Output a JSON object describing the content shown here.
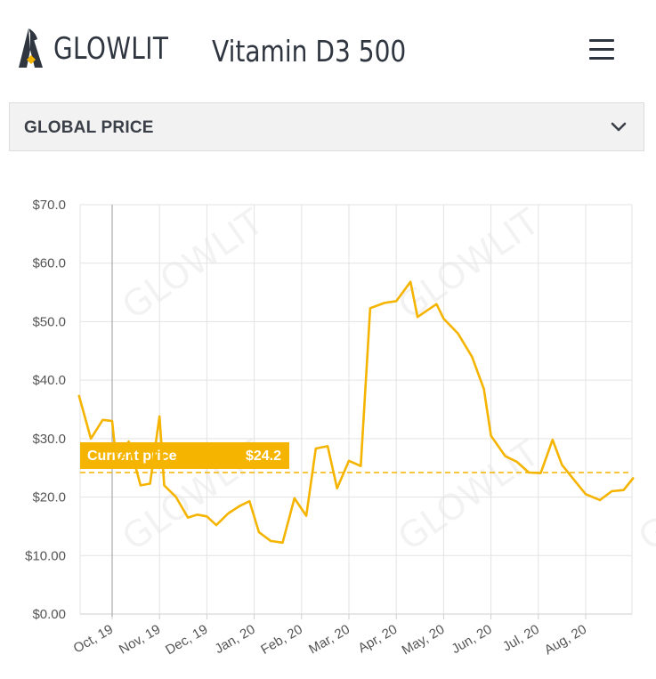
{
  "header": {
    "brand": "GLOWLIT",
    "product_title": "Vitamin D3 500",
    "menu_icon": "hamburger-menu-icon"
  },
  "section": {
    "title": "GLOBAL PRICE",
    "toggle_icon": "chevron-down-icon"
  },
  "watermark_text": "GLOWLIT",
  "colors": {
    "line": "#f5b400",
    "label_bg": "#f5b400",
    "text_dark": "#2f3640",
    "grid": "#e3e3e3"
  },
  "chart_data": {
    "type": "line",
    "xlabel": "",
    "ylabel": "",
    "ylim": [
      0,
      70
    ],
    "x_ticks": [
      "Oct, 19",
      "Nov, 19",
      "Dec, 19",
      "Jan, 20",
      "Feb, 20",
      "Mar, 20",
      "Apr, 20",
      "May, 20",
      "Jun, 20",
      "Jul, 20",
      "Aug, 20"
    ],
    "y_ticks": [
      {
        "value": 0,
        "label": "$0.00"
      },
      {
        "value": 10,
        "label": "$10.00"
      },
      {
        "value": 20,
        "label": "$20.0"
      },
      {
        "value": 30,
        "label": "$30.0"
      },
      {
        "value": 40,
        "label": "$40.0"
      },
      {
        "value": 50,
        "label": "$50.0"
      },
      {
        "value": 60,
        "label": "$60.0"
      },
      {
        "value": 70,
        "label": "$70.0"
      }
    ],
    "current_price": {
      "label": "Current price",
      "value_label": "$24.2",
      "value": 24.2
    },
    "series": [
      {
        "months": [
          -0.7,
          -0.45,
          -0.2,
          0.0,
          0.1,
          0.35,
          0.6,
          0.8,
          1.0,
          1.1,
          1.35,
          1.6,
          1.8,
          2.0,
          2.2,
          2.45,
          2.7,
          2.9,
          3.1,
          3.35,
          3.6,
          3.85,
          4.1,
          4.3,
          4.55,
          4.75,
          5.0,
          5.25,
          5.45,
          5.75,
          6.0,
          6.3,
          6.45,
          6.85,
          7.0,
          7.3,
          7.6,
          7.85,
          8.0,
          8.3,
          8.55,
          8.8,
          9.05,
          9.3,
          9.5,
          9.75,
          10.0,
          10.3,
          10.55,
          10.8,
          11.0
        ],
        "values": [
          37.3,
          30.0,
          33.2,
          33.0,
          25.2,
          29.5,
          22.0,
          22.3,
          33.8,
          22.0,
          20.0,
          16.5,
          17.0,
          16.7,
          15.2,
          17.2,
          18.5,
          19.3,
          14.0,
          12.5,
          12.2,
          19.8,
          16.8,
          28.3,
          28.7,
          21.5,
          26.2,
          25.3,
          52.3,
          53.2,
          53.5,
          56.8,
          50.8,
          53.0,
          50.5,
          48.0,
          44.0,
          38.5,
          30.5,
          27.0,
          26.0,
          24.2,
          24.1,
          29.8,
          25.5,
          23.0,
          20.5,
          19.5,
          21.0,
          21.2,
          23.2
        ]
      }
    ]
  }
}
